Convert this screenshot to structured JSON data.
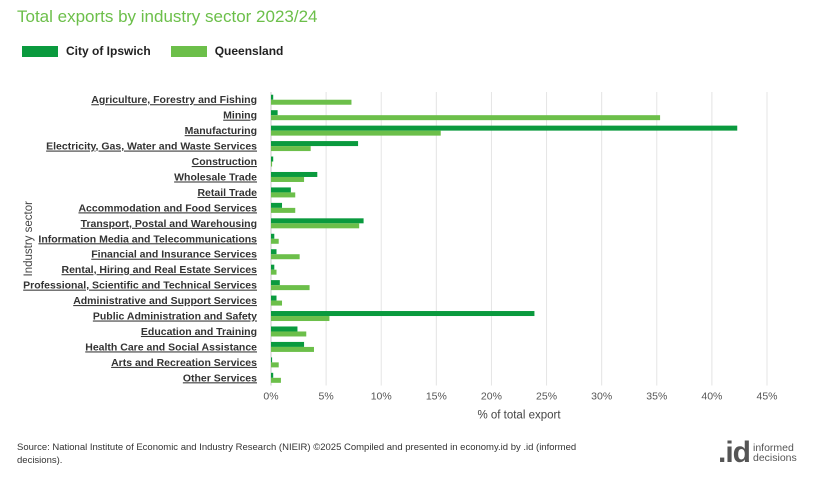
{
  "chart_data": {
    "type": "bar",
    "orientation": "horizontal",
    "title": "Total exports by industry sector 2023/24",
    "xlabel": "% of total export",
    "ylabel": "Industry sector",
    "xlim": [
      0,
      45
    ],
    "xticks": [
      0,
      5,
      10,
      15,
      20,
      25,
      30,
      35,
      40,
      45
    ],
    "tick_suffix": "%",
    "grid": true,
    "legend_position": "top-left",
    "categories": [
      "Agriculture, Forestry and Fishing",
      "Mining",
      "Manufacturing",
      "Electricity, Gas, Water and Waste Services",
      "Construction",
      "Wholesale Trade",
      "Retail Trade",
      "Accommodation and Food Services",
      "Transport, Postal and Warehousing",
      "Information Media and Telecommunications",
      "Financial and Insurance Services",
      "Rental, Hiring and Real Estate Services",
      "Professional, Scientific and Technical Services",
      "Administrative and Support Services",
      "Public Administration and Safety",
      "Education and Training",
      "Health Care and Social Assistance",
      "Arts and Recreation Services",
      "Other Services"
    ],
    "series": [
      {
        "name": "City of Ipswich",
        "color": "#0a9a3e",
        "values": [
          0.2,
          0.6,
          42.3,
          7.9,
          0.2,
          4.2,
          1.8,
          1.0,
          8.4,
          0.3,
          0.5,
          0.3,
          0.8,
          0.5,
          23.9,
          2.4,
          3.0,
          0.1,
          0.2
        ]
      },
      {
        "name": "Queensland",
        "color": "#6cbf4a",
        "values": [
          7.3,
          35.3,
          15.4,
          3.6,
          0.1,
          3.0,
          2.2,
          2.2,
          8.0,
          0.7,
          2.6,
          0.5,
          3.5,
          1.0,
          5.3,
          3.2,
          3.9,
          0.7,
          0.9
        ]
      }
    ]
  },
  "legend": {
    "items": [
      {
        "label": "City of Ipswich",
        "color": "#0a9a3e"
      },
      {
        "label": "Queensland",
        "color": "#6cbf4a"
      }
    ]
  },
  "footer": {
    "source_line1": "Source: National Institute of Economic and Industry Research (NIEIR) ©2025 Compiled and presented in economy.id by .id (informed",
    "source_line2": "decisions).",
    "logo_mark": ".id",
    "logo_line1": "informed",
    "logo_line2": "decisions"
  }
}
